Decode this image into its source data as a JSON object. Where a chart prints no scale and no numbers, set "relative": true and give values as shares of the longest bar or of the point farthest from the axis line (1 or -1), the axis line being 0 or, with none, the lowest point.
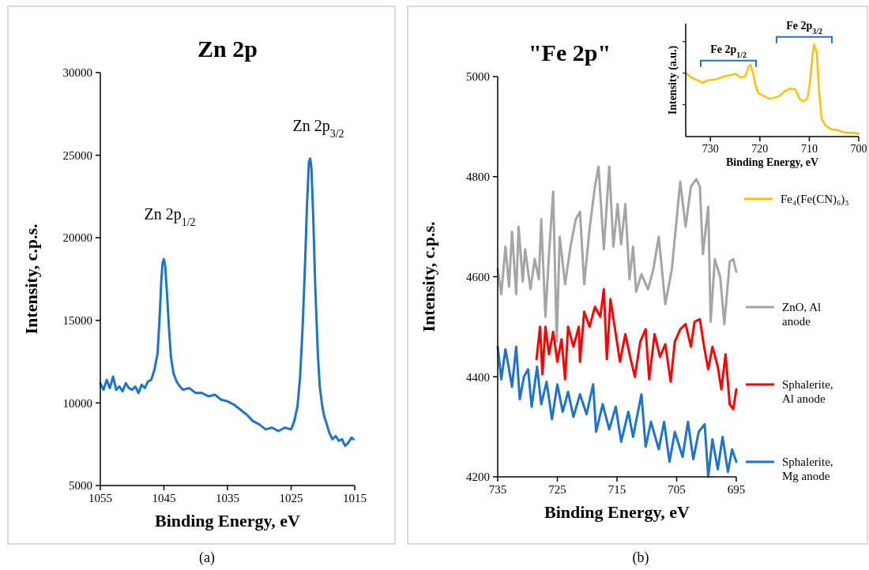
{
  "chart_data": [
    {
      "type": "line",
      "title": "Zn 2p",
      "xlabel": "Binding Energy, eV",
      "ylabel": "Intensity, c.p.s.",
      "xlim": [
        1055,
        1015
      ],
      "xticks": [
        1055,
        1045,
        1035,
        1025,
        1015
      ],
      "ylim": [
        5000,
        30000
      ],
      "yticks": [
        5000,
        10000,
        15000,
        20000,
        25000,
        30000
      ],
      "grid": false,
      "legend": false,
      "annotations": [
        "Zn 2p$_{1/2}$",
        "Zn 2p$_{3/2}$",
        "(a)"
      ],
      "series": [
        {
          "color": "#1f73c8",
          "x": [
            1055,
            1054.5,
            1054,
            1053.5,
            1053,
            1052.5,
            1052,
            1051.5,
            1051,
            1050.5,
            1050,
            1049.5,
            1049,
            1048.5,
            1048,
            1047.5,
            1047,
            1046.5,
            1046,
            1045.7,
            1045.4,
            1045.2,
            1045,
            1044.8,
            1044.5,
            1044.2,
            1043.9,
            1043.5,
            1043,
            1042.5,
            1042,
            1041,
            1040,
            1039,
            1038,
            1037,
            1036,
            1035,
            1034,
            1033,
            1032,
            1031,
            1030,
            1029,
            1028,
            1027,
            1026,
            1025,
            1024.5,
            1024,
            1023.6,
            1023.2,
            1022.8,
            1022.5,
            1022.2,
            1022,
            1021.8,
            1021.5,
            1021.2,
            1020.8,
            1020.5,
            1020.1,
            1019.8,
            1019.3,
            1019,
            1018.5,
            1018,
            1017.5,
            1017,
            1016.5,
            1016,
            1015.5,
            1015.2
          ],
          "values": [
            11200,
            10800,
            11400,
            10900,
            11600,
            10800,
            11000,
            10700,
            11200,
            10900,
            10800,
            11000,
            10600,
            11100,
            10900,
            11300,
            11400,
            12000,
            13000,
            15000,
            17500,
            18500,
            18700,
            18300,
            16500,
            14500,
            12800,
            11800,
            11300,
            11000,
            10800,
            10900,
            10600,
            10600,
            10400,
            10500,
            10200,
            10100,
            9900,
            9600,
            9300,
            8900,
            8700,
            8400,
            8500,
            8300,
            8500,
            8400,
            8900,
            9800,
            11500,
            14500,
            18500,
            22000,
            24600,
            24800,
            24200,
            21000,
            17000,
            13000,
            11000,
            9800,
            9200,
            8600,
            8200,
            7800,
            8000,
            7700,
            7800,
            7400,
            7600,
            7900,
            7800
          ]
        }
      ]
    },
    {
      "type": "line",
      "title": "\"Fe 2p\"",
      "xlabel": "Binding Energy, eV",
      "ylabel": "Intensity, c.p.s.",
      "xlim": [
        735,
        695
      ],
      "xticks": [
        735,
        725,
        715,
        705,
        695
      ],
      "ylim": [
        4200,
        5000
      ],
      "yticks": [
        4200,
        4400,
        4600,
        4800,
        5000
      ],
      "grid": false,
      "legend": "right",
      "annotations": [
        "(b)"
      ],
      "series": [
        {
          "name": "ZnO, Al anode",
          "color": "#a5a5a5",
          "x": [
            735,
            734.4,
            733.7,
            733.1,
            732.6,
            731.9,
            731.5,
            730.8,
            730.4,
            729.5,
            728.8,
            728.1,
            727.7,
            727.0,
            726.4,
            725.7,
            725.1,
            724.6,
            723.7,
            722.8,
            721.9,
            721.2,
            720.5,
            719.6,
            718.7,
            718.1,
            717.2,
            716.3,
            715.6,
            714.9,
            714.3,
            713.6,
            712.9,
            712.3,
            711.8,
            710.9,
            709.8,
            708.9,
            708.0,
            706.9,
            705.8,
            704.4,
            703.5,
            702.6,
            701.7,
            701.1,
            700.6,
            699.7,
            699.3,
            698.6,
            697.7,
            697.0,
            696.1,
            695.5,
            695.0
          ],
          "values": [
            4615,
            4565,
            4660,
            4580,
            4690,
            4565,
            4700,
            4590,
            4655,
            4575,
            4635,
            4595,
            4715,
            4520,
            4645,
            4770,
            4470,
            4680,
            4585,
            4660,
            4715,
            4730,
            4585,
            4695,
            4780,
            4820,
            4655,
            4820,
            4660,
            4745,
            4665,
            4745,
            4595,
            4660,
            4570,
            4605,
            4575,
            4615,
            4680,
            4545,
            4615,
            4790,
            4700,
            4780,
            4795,
            4780,
            4645,
            4740,
            4510,
            4635,
            4600,
            4505,
            4630,
            4635,
            4610
          ]
        },
        {
          "name": "Sphalerite, Al anode",
          "color": "#ff0000",
          "x": [
            728.5,
            727.9,
            727.5,
            727.0,
            726.4,
            725.7,
            725.0,
            724.3,
            723.7,
            723.2,
            722.3,
            721.4,
            721.2,
            720.5,
            719.6,
            718.7,
            717.8,
            717.2,
            716.7,
            716.1,
            715.2,
            714.5,
            713.6,
            712.7,
            712.0,
            711.1,
            710.2,
            709.6,
            708.7,
            707.8,
            706.9,
            706.0,
            705.3,
            704.4,
            703.5,
            702.6,
            702.0,
            701.1,
            700.4,
            699.7,
            699.0,
            698.1,
            697.5,
            696.8,
            696.1,
            695.5,
            695.0
          ],
          "values": [
            4435,
            4500,
            4405,
            4500,
            4445,
            4490,
            4430,
            4475,
            4395,
            4500,
            4460,
            4500,
            4430,
            4530,
            4500,
            4540,
            4520,
            4575,
            4435,
            4555,
            4485,
            4430,
            4485,
            4435,
            4400,
            4470,
            4495,
            4395,
            4485,
            4440,
            4465,
            4390,
            4470,
            4495,
            4505,
            4460,
            4510,
            4515,
            4460,
            4415,
            4460,
            4420,
            4375,
            4445,
            4345,
            4335,
            4375
          ]
        },
        {
          "name": "Sphalerite, Mg anode",
          "color": "#1f73c8",
          "x": [
            735,
            734.4,
            733.7,
            733.1,
            732.6,
            731.9,
            731.3,
            730.6,
            729.9,
            729.3,
            728.4,
            727.7,
            726.8,
            725.9,
            725.0,
            724.1,
            723.2,
            722.3,
            721.2,
            720.1,
            719.0,
            718.5,
            717.4,
            716.3,
            715.2,
            714.3,
            713.1,
            712.3,
            710.9,
            710.2,
            709.3,
            708.0,
            707.1,
            706.2,
            705.3,
            704.0,
            703.1,
            702.2,
            701.3,
            700.3,
            699.7,
            699.0,
            698.1,
            697.3,
            696.4,
            695.7,
            695.0
          ],
          "values": [
            4460,
            4395,
            4455,
            4415,
            4380,
            4460,
            4355,
            4400,
            4415,
            4340,
            4420,
            4345,
            4390,
            4315,
            4385,
            4330,
            4370,
            4320,
            4365,
            4325,
            4385,
            4290,
            4345,
            4295,
            4340,
            4270,
            4330,
            4280,
            4365,
            4260,
            4310,
            4255,
            4310,
            4230,
            4290,
            4240,
            4310,
            4235,
            4290,
            4305,
            4200,
            4275,
            4215,
            4280,
            4210,
            4255,
            4230
          ]
        }
      ]
    },
    {
      "type": "line",
      "xlabel": "Binding Energy, eV",
      "ylabel": "Intensity (a.u.)",
      "xlim": [
        735,
        700
      ],
      "xticks": [
        730,
        720,
        710,
        700
      ],
      "relative": true,
      "grid": false,
      "legend": "right",
      "annotations": [
        "Fe 2p$_{1/2}$",
        "Fe 2p$_{3/2}$"
      ],
      "series": [
        {
          "name": "Fe₄(Fe(CN)₆)₃",
          "color": "#ffc000",
          "x": [
            735,
            733.9,
            732.6,
            731.5,
            730.5,
            728.9,
            727.3,
            725.6,
            724.8,
            724.0,
            723.0,
            722.3,
            721.9,
            721.4,
            720.8,
            720.3,
            719.2,
            718.2,
            717.1,
            716.0,
            715.0,
            713.9,
            712.8,
            712.0,
            711.2,
            710.4,
            709.9,
            709.3,
            709.0,
            708.5,
            708.0,
            707.5,
            706.7,
            705.6,
            704.3,
            703.2,
            702.1,
            701.1,
            700.0
          ],
          "values": [
            0.69,
            0.64,
            0.61,
            0.58,
            0.61,
            0.62,
            0.65,
            0.67,
            0.68,
            0.64,
            0.65,
            0.75,
            0.78,
            0.69,
            0.54,
            0.47,
            0.44,
            0.41,
            0.42,
            0.44,
            0.49,
            0.52,
            0.51,
            0.41,
            0.38,
            0.41,
            0.57,
            0.91,
            1.0,
            0.91,
            0.48,
            0.19,
            0.12,
            0.08,
            0.07,
            0.05,
            0.04,
            0.04,
            0.03
          ]
        }
      ]
    }
  ]
}
